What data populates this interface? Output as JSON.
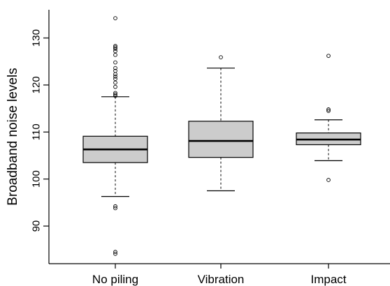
{
  "chart_data": {
    "type": "box",
    "ylabel": "Broadband noise levels",
    "xlabel": "",
    "ylim": [
      82,
      136
    ],
    "yticks": [
      90,
      100,
      110,
      120,
      130
    ],
    "categories": [
      "No piling",
      "Vibration",
      "Impact"
    ],
    "box_fill": "#cccccc",
    "boxes": [
      {
        "name": "No piling",
        "whisker_low": 96.3,
        "q1": 103.5,
        "median": 106.3,
        "q3": 109.1,
        "whisker_high": 117.5,
        "outliers": [
          94.2,
          93.8,
          84.5,
          84.1,
          117.7,
          118.0,
          118.3,
          119.6,
          120.5,
          121.3,
          121.8,
          122.3,
          123.0,
          123.6,
          124.8,
          126.4,
          127.2,
          127.7,
          128.0,
          128.3,
          134.2
        ]
      },
      {
        "name": "Vibration",
        "whisker_low": 97.5,
        "q1": 104.6,
        "median": 108.1,
        "q3": 112.3,
        "whisker_high": 123.6,
        "outliers": [
          125.9
        ]
      },
      {
        "name": "Impact",
        "whisker_low": 103.9,
        "q1": 107.3,
        "median": 108.4,
        "q3": 109.8,
        "whisker_high": 112.6,
        "outliers": [
          99.8,
          114.5,
          114.8,
          126.2
        ]
      }
    ]
  }
}
